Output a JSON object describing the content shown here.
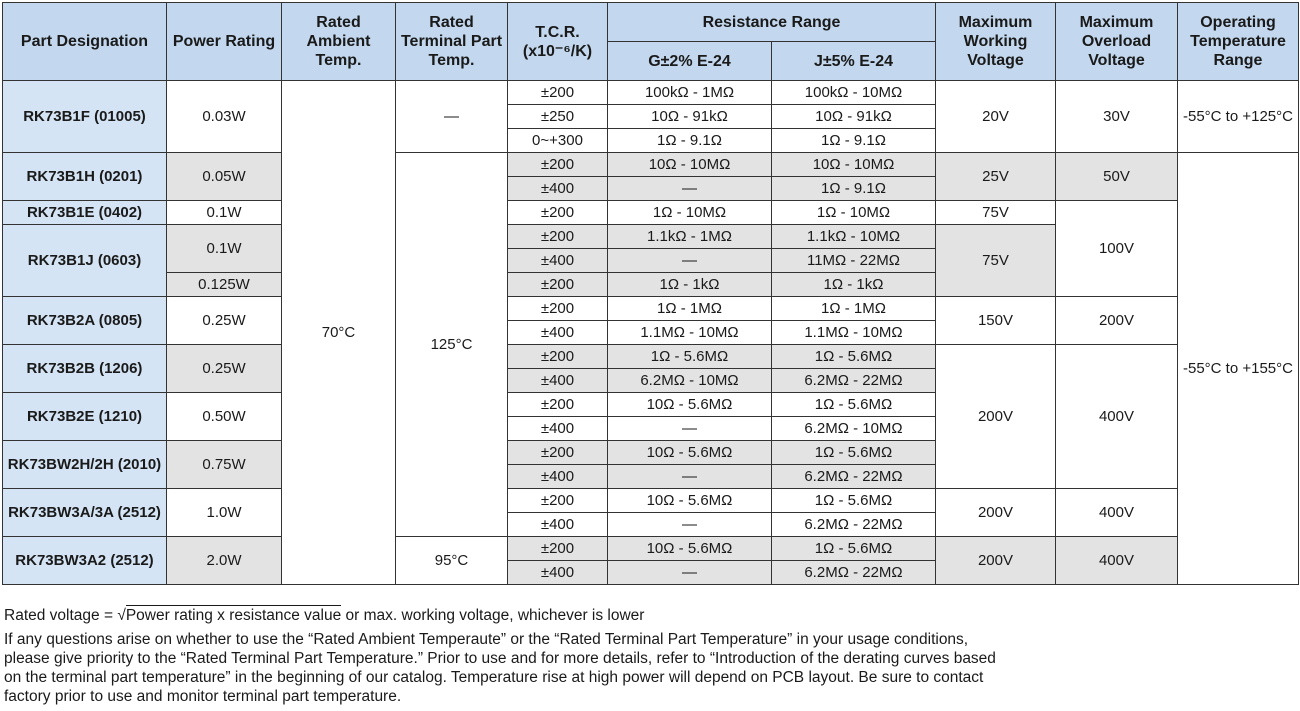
{
  "headers": {
    "part": "Part Designation",
    "power": "Power Rating",
    "ambient": "Rated Ambient Temp.",
    "terminal": "Rated Terminal Part Temp.",
    "tcr": "T.C.R. (x10⁻⁶/K)",
    "resistance": "Resistance Range",
    "g": "G±2% E-24",
    "j": "J±5% E-24",
    "mwv": "Maximum Working Voltage",
    "mov": "Maximum Overload Voltage",
    "otr": "Operating Temperature Range"
  },
  "cells": {
    "r0": {
      "part": "RK73B1F (01005)",
      "power": "0.03W",
      "ambient": "70°C",
      "terminal": "—",
      "tcr": "±200",
      "g": "100kΩ - 1MΩ",
      "j": "100kΩ - 10MΩ",
      "mwv": "20V",
      "mov": "30V",
      "otr": "-55°C to +125°C"
    },
    "r1": {
      "tcr": "±250",
      "g": "10Ω - 91kΩ",
      "j": "10Ω - 91kΩ"
    },
    "r2": {
      "tcr": "0~+300",
      "g": "1Ω - 9.1Ω",
      "j": "1Ω - 9.1Ω"
    },
    "r3": {
      "part": "RK73B1H (0201)",
      "power": "0.05W",
      "terminal": "125°C",
      "tcr": "±200",
      "g": "10Ω - 10MΩ",
      "j": "10Ω - 10MΩ",
      "mwv": "25V",
      "mov": "50V",
      "otr": "-55°C to +155°C"
    },
    "r4": {
      "tcr": "±400",
      "g": "—",
      "j": "1Ω - 9.1Ω"
    },
    "r5": {
      "part": "RK73B1E (0402)",
      "power": "0.1W",
      "tcr": "±200",
      "g": "1Ω - 10MΩ",
      "j": "1Ω - 10MΩ",
      "mwv": "75V",
      "mov": "100V"
    },
    "r6": {
      "part": "RK73B1J (0603)",
      "power": "0.1W",
      "tcr": "±200",
      "g": "1.1kΩ - 1MΩ",
      "j": "1.1kΩ - 10MΩ",
      "mwv": "75V"
    },
    "r7": {
      "tcr": "±400",
      "g": "—",
      "j": "11MΩ - 22MΩ"
    },
    "r8": {
      "power": "0.125W",
      "tcr": "±200",
      "g": "1Ω - 1kΩ",
      "j": "1Ω - 1kΩ"
    },
    "r9": {
      "part": "RK73B2A (0805)",
      "power": "0.25W",
      "tcr": "±200",
      "g": "1Ω - 1MΩ",
      "j": "1Ω - 1MΩ",
      "mwv": "150V",
      "mov": "200V"
    },
    "r10": {
      "tcr": "±400",
      "g": "1.1MΩ - 10MΩ",
      "j": "1.1MΩ - 10MΩ"
    },
    "r11": {
      "part": "RK73B2B (1206)",
      "power": "0.25W",
      "tcr": "±200",
      "g": "1Ω - 5.6MΩ",
      "j": "1Ω - 5.6MΩ",
      "mwv": "200V",
      "mov": "400V"
    },
    "r12": {
      "tcr": "±400",
      "g": "6.2MΩ - 10MΩ",
      "j": "6.2MΩ - 22MΩ"
    },
    "r13": {
      "part": "RK73B2E (1210)",
      "power": "0.50W",
      "tcr": "±200",
      "g": "10Ω - 5.6MΩ",
      "j": "1Ω - 5.6MΩ"
    },
    "r14": {
      "tcr": "±400",
      "g": "—",
      "j": "6.2MΩ - 10MΩ"
    },
    "r15": {
      "part": "RK73BW2H/2H (2010)",
      "power": "0.75W",
      "tcr": "±200",
      "g": "10Ω - 5.6MΩ",
      "j": "1Ω - 5.6MΩ"
    },
    "r16": {
      "tcr": "±400",
      "g": "—",
      "j": "6.2MΩ - 22MΩ"
    },
    "r17": {
      "part": "RK73BW3A/3A (2512)",
      "power": "1.0W",
      "tcr": "±200",
      "g": "10Ω - 5.6MΩ",
      "j": "1Ω - 5.6MΩ",
      "mwv": "200V",
      "mov": "400V"
    },
    "r18": {
      "tcr": "±400",
      "g": "—",
      "j": "6.2MΩ - 22MΩ"
    },
    "r19": {
      "part": "RK73BW3A2 (2512)",
      "power": "2.0W",
      "terminal": "95°C",
      "tcr": "±200",
      "g": "10Ω - 5.6MΩ",
      "j": "1Ω - 5.6MΩ",
      "mwv": "200V",
      "mov": "400V"
    },
    "r20": {
      "tcr": "±400",
      "g": "—",
      "j": "6.2MΩ - 22MΩ"
    }
  },
  "notes": {
    "rated_voltage_prefix": "Rated voltage = ",
    "rated_voltage_sqrt": "√",
    "rated_voltage_radicand": "Power rating x resistance value",
    "rated_voltage_suffix": " or max. working voltage, whichever is lower",
    "paragraph": "If any questions arise on whether to use the “Rated Ambient Temperaute” or the “Rated Terminal Part Temperature” in your usage conditions, please give priority to the “Rated Terminal Part Temperature.” Prior to use and for more details, refer to “Introduction of the derating curves based on the terminal part temperature” in the beginning of our catalog. Temperature rise at high power will depend on PCB layout. Be sure to contact factory prior to use and monitor terminal part temperature."
  }
}
